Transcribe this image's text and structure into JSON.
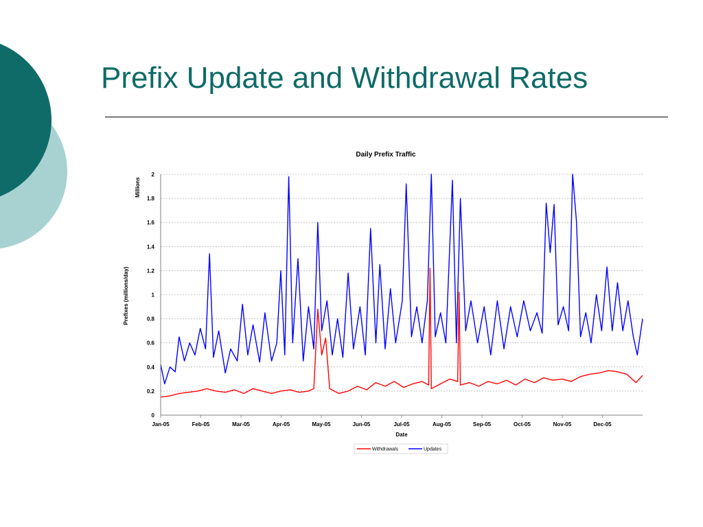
{
  "slide": {
    "title": "Prefix Update and Withdrawal Rates",
    "colors": {
      "title": "#0f6b67",
      "circle_dark": "#0f6b67",
      "circle_light": "#a7d2d1",
      "rule": "#000000"
    }
  },
  "chart_data": {
    "type": "line",
    "title": "Daily Prefix Traffic",
    "xlabel": "Date",
    "ylabel": "Prefixes (millions/day)",
    "y_unit_label": "Millions",
    "ylim": [
      0,
      2
    ],
    "y_ticks": [
      "0",
      "0.2",
      "0.4",
      "0.6",
      "0.8",
      "1",
      "1.2",
      "1.4",
      "1.6",
      "1.8",
      "2"
    ],
    "x_ticks": [
      "Jan-05",
      "Feb-05",
      "Mar-05",
      "Apr-05",
      "May-05",
      "Jun-05",
      "Jul-05",
      "Aug-05",
      "Sep-05",
      "Oct-05",
      "Nov-05",
      "Dec-05"
    ],
    "x_range": [
      "2005-01-01",
      "2006-01-01"
    ],
    "grid": "horizontal",
    "legend_position": "bottom",
    "sampling": "weekly",
    "series": [
      {
        "name": "Withdrawals",
        "color": "#ff0000",
        "points": [
          [
            "2005-01-01",
            0.15
          ],
          [
            "2005-01-08",
            0.16
          ],
          [
            "2005-01-15",
            0.18
          ],
          [
            "2005-01-22",
            0.19
          ],
          [
            "2005-01-29",
            0.2
          ],
          [
            "2005-02-05",
            0.22
          ],
          [
            "2005-02-12",
            0.2
          ],
          [
            "2005-02-19",
            0.19
          ],
          [
            "2005-02-26",
            0.21
          ],
          [
            "2005-03-05",
            0.18
          ],
          [
            "2005-03-12",
            0.22
          ],
          [
            "2005-03-19",
            0.2
          ],
          [
            "2005-03-26",
            0.18
          ],
          [
            "2005-04-02",
            0.2
          ],
          [
            "2005-04-09",
            0.21
          ],
          [
            "2005-04-16",
            0.19
          ],
          [
            "2005-04-23",
            0.2
          ],
          [
            "2005-04-27",
            0.22
          ],
          [
            "2005-04-30",
            0.88
          ],
          [
            "2005-05-03",
            0.5
          ],
          [
            "2005-05-06",
            0.64
          ],
          [
            "2005-05-09",
            0.22
          ],
          [
            "2005-05-16",
            0.18
          ],
          [
            "2005-05-23",
            0.2
          ],
          [
            "2005-05-30",
            0.24
          ],
          [
            "2005-06-06",
            0.21
          ],
          [
            "2005-06-13",
            0.27
          ],
          [
            "2005-06-20",
            0.24
          ],
          [
            "2005-06-27",
            0.28
          ],
          [
            "2005-07-04",
            0.23
          ],
          [
            "2005-07-11",
            0.26
          ],
          [
            "2005-07-18",
            0.28
          ],
          [
            "2005-07-23",
            0.25
          ],
          [
            "2005-07-24",
            1.22
          ],
          [
            "2005-07-25",
            0.22
          ],
          [
            "2005-08-01",
            0.26
          ],
          [
            "2005-08-08",
            0.3
          ],
          [
            "2005-08-14",
            0.28
          ],
          [
            "2005-08-15",
            1.02
          ],
          [
            "2005-08-16",
            0.25
          ],
          [
            "2005-08-23",
            0.27
          ],
          [
            "2005-08-30",
            0.24
          ],
          [
            "2005-09-06",
            0.28
          ],
          [
            "2005-09-13",
            0.26
          ],
          [
            "2005-09-20",
            0.29
          ],
          [
            "2005-09-27",
            0.25
          ],
          [
            "2005-10-04",
            0.3
          ],
          [
            "2005-10-11",
            0.27
          ],
          [
            "2005-10-18",
            0.31
          ],
          [
            "2005-10-25",
            0.29
          ],
          [
            "2005-11-01",
            0.3
          ],
          [
            "2005-11-08",
            0.28
          ],
          [
            "2005-11-15",
            0.32
          ],
          [
            "2005-11-22",
            0.34
          ],
          [
            "2005-11-29",
            0.35
          ],
          [
            "2005-12-06",
            0.37
          ],
          [
            "2005-12-13",
            0.36
          ],
          [
            "2005-12-20",
            0.34
          ],
          [
            "2005-12-27",
            0.27
          ],
          [
            "2006-01-01",
            0.33
          ]
        ]
      },
      {
        "name": "Updates",
        "color": "#0000ff",
        "points": [
          [
            "2005-01-01",
            0.42
          ],
          [
            "2005-01-04",
            0.26
          ],
          [
            "2005-01-08",
            0.4
          ],
          [
            "2005-01-12",
            0.36
          ],
          [
            "2005-01-15",
            0.65
          ],
          [
            "2005-01-19",
            0.45
          ],
          [
            "2005-01-23",
            0.6
          ],
          [
            "2005-01-27",
            0.5
          ],
          [
            "2005-01-31",
            0.72
          ],
          [
            "2005-02-04",
            0.55
          ],
          [
            "2005-02-07",
            1.34
          ],
          [
            "2005-02-10",
            0.48
          ],
          [
            "2005-02-14",
            0.7
          ],
          [
            "2005-02-19",
            0.35
          ],
          [
            "2005-02-23",
            0.55
          ],
          [
            "2005-02-28",
            0.45
          ],
          [
            "2005-03-04",
            0.92
          ],
          [
            "2005-03-08",
            0.5
          ],
          [
            "2005-03-12",
            0.75
          ],
          [
            "2005-03-17",
            0.44
          ],
          [
            "2005-03-21",
            0.85
          ],
          [
            "2005-03-26",
            0.45
          ],
          [
            "2005-03-30",
            0.6
          ],
          [
            "2005-04-02",
            1.2
          ],
          [
            "2005-04-05",
            0.5
          ],
          [
            "2005-04-08",
            1.98
          ],
          [
            "2005-04-11",
            0.6
          ],
          [
            "2005-04-15",
            1.3
          ],
          [
            "2005-04-19",
            0.45
          ],
          [
            "2005-04-23",
            0.9
          ],
          [
            "2005-04-27",
            0.55
          ],
          [
            "2005-04-30",
            1.6
          ],
          [
            "2005-05-03",
            0.7
          ],
          [
            "2005-05-07",
            0.95
          ],
          [
            "2005-05-11",
            0.5
          ],
          [
            "2005-05-15",
            0.8
          ],
          [
            "2005-05-19",
            0.48
          ],
          [
            "2005-05-23",
            1.18
          ],
          [
            "2005-05-27",
            0.55
          ],
          [
            "2005-06-01",
            0.9
          ],
          [
            "2005-06-05",
            0.5
          ],
          [
            "2005-06-09",
            1.55
          ],
          [
            "2005-06-13",
            0.6
          ],
          [
            "2005-06-16",
            1.25
          ],
          [
            "2005-06-20",
            0.55
          ],
          [
            "2005-06-24",
            1.05
          ],
          [
            "2005-06-28",
            0.6
          ],
          [
            "2005-07-03",
            0.95
          ],
          [
            "2005-07-06",
            1.92
          ],
          [
            "2005-07-10",
            0.65
          ],
          [
            "2005-07-14",
            0.9
          ],
          [
            "2005-07-18",
            0.6
          ],
          [
            "2005-07-22",
            0.95
          ],
          [
            "2005-07-25",
            2.0
          ],
          [
            "2005-07-28",
            0.65
          ],
          [
            "2005-08-01",
            0.85
          ],
          [
            "2005-08-05",
            0.6
          ],
          [
            "2005-08-10",
            1.95
          ],
          [
            "2005-08-13",
            0.6
          ],
          [
            "2005-08-16",
            1.8
          ],
          [
            "2005-08-20",
            0.7
          ],
          [
            "2005-08-24",
            0.95
          ],
          [
            "2005-08-29",
            0.6
          ],
          [
            "2005-09-03",
            0.9
          ],
          [
            "2005-09-08",
            0.5
          ],
          [
            "2005-09-13",
            0.95
          ],
          [
            "2005-09-18",
            0.55
          ],
          [
            "2005-09-23",
            0.9
          ],
          [
            "2005-09-28",
            0.65
          ],
          [
            "2005-10-03",
            0.95
          ],
          [
            "2005-10-08",
            0.7
          ],
          [
            "2005-10-13",
            0.85
          ],
          [
            "2005-10-17",
            0.68
          ],
          [
            "2005-10-20",
            1.76
          ],
          [
            "2005-10-23",
            1.35
          ],
          [
            "2005-10-26",
            1.75
          ],
          [
            "2005-10-29",
            0.75
          ],
          [
            "2005-11-02",
            0.9
          ],
          [
            "2005-11-06",
            0.7
          ],
          [
            "2005-11-09",
            2.0
          ],
          [
            "2005-11-12",
            1.6
          ],
          [
            "2005-11-15",
            0.65
          ],
          [
            "2005-11-19",
            0.85
          ],
          [
            "2005-11-23",
            0.6
          ],
          [
            "2005-11-27",
            1.0
          ],
          [
            "2005-12-01",
            0.7
          ],
          [
            "2005-12-05",
            1.23
          ],
          [
            "2005-12-09",
            0.7
          ],
          [
            "2005-12-13",
            1.1
          ],
          [
            "2005-12-17",
            0.7
          ],
          [
            "2005-12-21",
            0.95
          ],
          [
            "2005-12-25",
            0.65
          ],
          [
            "2005-12-28",
            0.5
          ],
          [
            "2006-01-01",
            0.8
          ]
        ]
      }
    ]
  }
}
